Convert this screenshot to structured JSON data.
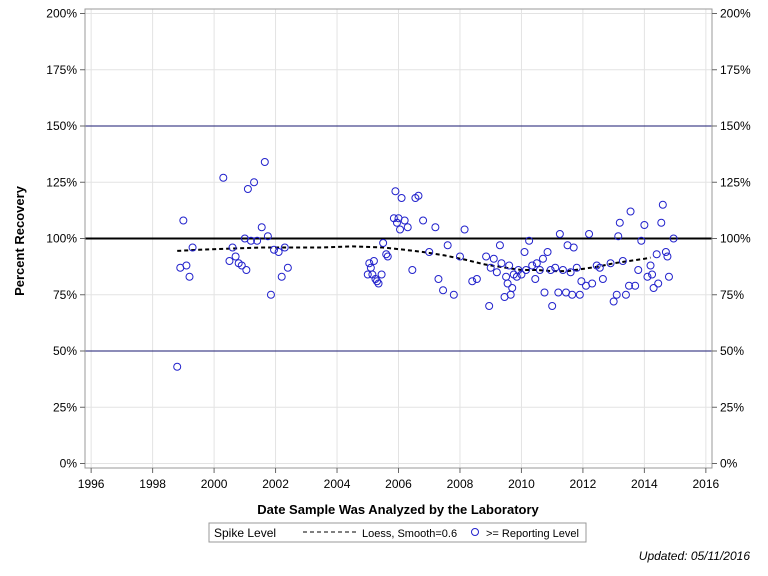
{
  "chart_data": {
    "type": "scatter",
    "xlabel": "Date Sample Was Analyzed by the Laboratory",
    "ylabel": "Percent Recovery",
    "xlim": [
      1995.8,
      2016.2
    ],
    "ylim": [
      -2,
      202
    ],
    "x_ticks": [
      1996,
      1998,
      2000,
      2002,
      2004,
      2006,
      2008,
      2010,
      2012,
      2014,
      2016
    ],
    "x_tick_labels": [
      "1996",
      "1998",
      "2000",
      "2002",
      "2004",
      "2006",
      "2008",
      "2010",
      "2012",
      "2014",
      "2016"
    ],
    "y_ticks": [
      0,
      25,
      50,
      75,
      100,
      125,
      150,
      175,
      200
    ],
    "y_tick_labels": [
      "0%",
      "25%",
      "50%",
      "75%",
      "100%",
      "125%",
      "150%",
      "175%",
      "200%"
    ],
    "grid": true,
    "reference_lines": [
      {
        "y": 50,
        "color": "#1a1a70",
        "width": 1
      },
      {
        "y": 100,
        "color": "#000000",
        "width": 2
      },
      {
        "y": 150,
        "color": "#1a1a70",
        "width": 1
      }
    ],
    "loess": {
      "x": [
        1998.8,
        1999.5,
        2000.5,
        2001.5,
        2002.5,
        2003.5,
        2004.5,
        2005.5,
        2006.2,
        2006.8,
        2007.5,
        2008.2,
        2008.8,
        2009.5,
        2010.0,
        2010.5,
        2011.0,
        2011.5,
        2012.0,
        2012.5,
        2013.0,
        2013.5,
        2014.0,
        2014.2
      ],
      "y": [
        94.5,
        95.0,
        95.5,
        96.0,
        96.0,
        96.0,
        96.5,
        96.0,
        95.0,
        94.0,
        92.5,
        90.5,
        88.5,
        87.0,
        86.0,
        86.0,
        85.5,
        85.5,
        86.5,
        87.5,
        89.0,
        90.0,
        91.0,
        91.5
      ]
    },
    "points": [
      [
        1998.8,
        43
      ],
      [
        1998.9,
        87
      ],
      [
        1999.0,
        108
      ],
      [
        1999.1,
        88
      ],
      [
        1999.2,
        83
      ],
      [
        1999.3,
        96
      ],
      [
        2000.3,
        127
      ],
      [
        2000.5,
        90
      ],
      [
        2000.6,
        96
      ],
      [
        2000.7,
        92
      ],
      [
        2000.8,
        89
      ],
      [
        2000.9,
        88
      ],
      [
        2001.0,
        100
      ],
      [
        2001.05,
        86
      ],
      [
        2001.1,
        122
      ],
      [
        2001.2,
        99
      ],
      [
        2001.3,
        125
      ],
      [
        2001.4,
        99
      ],
      [
        2001.55,
        105
      ],
      [
        2001.65,
        134
      ],
      [
        2001.75,
        101
      ],
      [
        2001.85,
        75
      ],
      [
        2001.95,
        95
      ],
      [
        2002.1,
        94
      ],
      [
        2002.2,
        83
      ],
      [
        2002.3,
        96
      ],
      [
        2002.4,
        87
      ],
      [
        2005.0,
        84
      ],
      [
        2005.05,
        89
      ],
      [
        2005.1,
        87
      ],
      [
        2005.15,
        84
      ],
      [
        2005.2,
        90
      ],
      [
        2005.25,
        82
      ],
      [
        2005.3,
        81
      ],
      [
        2005.35,
        80
      ],
      [
        2005.45,
        84
      ],
      [
        2005.5,
        98
      ],
      [
        2005.6,
        93
      ],
      [
        2005.65,
        92
      ],
      [
        2005.85,
        109
      ],
      [
        2005.9,
        121
      ],
      [
        2005.95,
        107
      ],
      [
        2006.0,
        109
      ],
      [
        2006.05,
        104
      ],
      [
        2006.1,
        118
      ],
      [
        2006.2,
        108
      ],
      [
        2006.3,
        105
      ],
      [
        2006.45,
        86
      ],
      [
        2006.55,
        118
      ],
      [
        2006.65,
        119
      ],
      [
        2006.8,
        108
      ],
      [
        2007.0,
        94
      ],
      [
        2007.2,
        105
      ],
      [
        2007.3,
        82
      ],
      [
        2007.45,
        77
      ],
      [
        2007.6,
        97
      ],
      [
        2007.8,
        75
      ],
      [
        2008.0,
        92
      ],
      [
        2008.15,
        104
      ],
      [
        2008.4,
        81
      ],
      [
        2008.55,
        82
      ],
      [
        2008.85,
        92
      ],
      [
        2008.95,
        70
      ],
      [
        2009.0,
        87
      ],
      [
        2009.1,
        91
      ],
      [
        2009.2,
        85
      ],
      [
        2009.3,
        97
      ],
      [
        2009.35,
        89
      ],
      [
        2009.45,
        74
      ],
      [
        2009.5,
        83
      ],
      [
        2009.55,
        80
      ],
      [
        2009.6,
        88
      ],
      [
        2009.65,
        75
      ],
      [
        2009.7,
        78
      ],
      [
        2009.75,
        84
      ],
      [
        2009.85,
        83
      ],
      [
        2009.9,
        86
      ],
      [
        2010.0,
        84
      ],
      [
        2010.1,
        94
      ],
      [
        2010.15,
        86
      ],
      [
        2010.25,
        99
      ],
      [
        2010.35,
        88
      ],
      [
        2010.45,
        82
      ],
      [
        2010.5,
        89
      ],
      [
        2010.6,
        86
      ],
      [
        2010.7,
        91
      ],
      [
        2010.75,
        76
      ],
      [
        2010.85,
        94
      ],
      [
        2010.95,
        86
      ],
      [
        2011.0,
        70
      ],
      [
        2011.1,
        87
      ],
      [
        2011.2,
        76
      ],
      [
        2011.25,
        102
      ],
      [
        2011.35,
        86
      ],
      [
        2011.45,
        76
      ],
      [
        2011.5,
        97
      ],
      [
        2011.6,
        85
      ],
      [
        2011.65,
        75
      ],
      [
        2011.7,
        96
      ],
      [
        2011.8,
        87
      ],
      [
        2011.9,
        75
      ],
      [
        2011.95,
        81
      ],
      [
        2012.1,
        79
      ],
      [
        2012.2,
        102
      ],
      [
        2012.3,
        80
      ],
      [
        2012.45,
        88
      ],
      [
        2012.55,
        87
      ],
      [
        2012.65,
        82
      ],
      [
        2012.9,
        89
      ],
      [
        2013.0,
        72
      ],
      [
        2013.1,
        75
      ],
      [
        2013.15,
        101
      ],
      [
        2013.2,
        107
      ],
      [
        2013.3,
        90
      ],
      [
        2013.4,
        75
      ],
      [
        2013.5,
        79
      ],
      [
        2013.55,
        112
      ],
      [
        2013.7,
        79
      ],
      [
        2013.8,
        86
      ],
      [
        2013.9,
        99
      ],
      [
        2014.0,
        106
      ],
      [
        2014.1,
        83
      ],
      [
        2014.2,
        88
      ],
      [
        2014.25,
        84
      ],
      [
        2014.3,
        78
      ],
      [
        2014.4,
        93
      ],
      [
        2014.45,
        80
      ],
      [
        2014.55,
        107
      ],
      [
        2014.6,
        115
      ],
      [
        2014.7,
        94
      ],
      [
        2014.75,
        92
      ],
      [
        2014.8,
        83
      ],
      [
        2014.95,
        100
      ]
    ],
    "legend": {
      "title": "Spike Level",
      "entries": [
        {
          "label": "Loess, Smooth=0.6",
          "style": "dashed-line",
          "color": "#000000"
        },
        {
          "label": ">= Reporting Level",
          "style": "open-circle",
          "color": "#2222cc"
        }
      ],
      "placement": "bottom-center"
    },
    "colors": {
      "marker": "#2222cc",
      "loess": "#000000",
      "grid": "#e3e3e3",
      "frame": "#999999"
    }
  },
  "footer": {
    "updated": "Updated: 05/11/2016"
  }
}
